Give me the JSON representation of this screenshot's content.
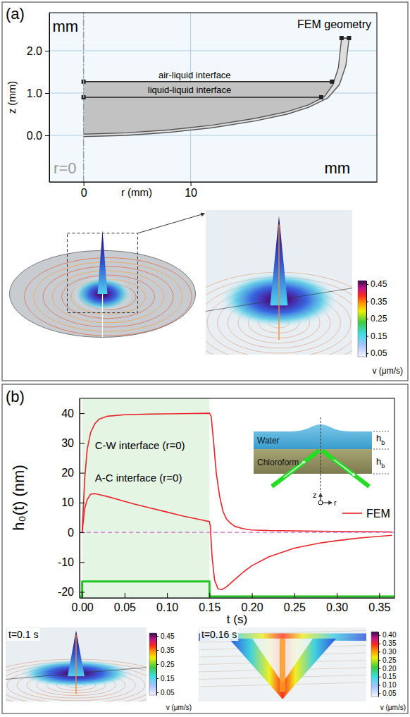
{
  "chart_data": [
    {
      "type": "line",
      "panel": "(a)",
      "title": "FEM geometry",
      "xlabel": "r (mm)",
      "ylabel": "z (mm)",
      "xlim": [
        -3.2,
        27.4
      ],
      "ylim": [
        -1.1,
        2.9
      ],
      "xticks": [
        0,
        10
      ],
      "yticks": [
        {
          "value": 0,
          "label": "0.0"
        },
        {
          "value": 1,
          "label": "1.0"
        },
        {
          "value": 2,
          "label": "2.0"
        }
      ],
      "grid": true,
      "series": [
        {
          "x": [
            0,
            4,
            8,
            12,
            16,
            19,
            21,
            22.5,
            23.3,
            23.8,
            24.1
          ],
          "values": [
            0.03,
            0.06,
            0.13,
            0.24,
            0.4,
            0.56,
            0.72,
            0.92,
            1.2,
            1.6,
            2.3
          ],
          "color": "#555555"
        },
        {
          "x": [
            0,
            4,
            8,
            12,
            16,
            19,
            21,
            22.8,
            23.9,
            24.5,
            24.8
          ],
          "values": [
            -0.03,
            0.0,
            0.07,
            0.18,
            0.34,
            0.5,
            0.66,
            0.88,
            1.2,
            1.65,
            2.3
          ],
          "color": "#555555"
        },
        {
          "x": [
            0,
            23.2
          ],
          "values": [
            1.27,
            1.27
          ],
          "color": "#222222",
          "marker": "square"
        },
        {
          "x": [
            0,
            22.2
          ],
          "values": [
            0.9,
            0.9
          ],
          "color": "#222222",
          "marker": "square"
        },
        {
          "x": [
            0,
            0
          ],
          "values": [
            -1.1,
            2.9
          ],
          "color": "#999999",
          "line_style": "dashdot"
        },
        {
          "x": [
            24.1,
            24.8
          ],
          "values": [
            2.3,
            2.3
          ],
          "color": "#222222",
          "marker": "square"
        }
      ],
      "annotations": [
        {
          "text": "air-liquid interface",
          "x": 7,
          "y": 1.35
        },
        {
          "text": "liquid-liquid interface",
          "x": 6,
          "y": 1.0
        },
        {
          "text": "mm",
          "x": -2.9,
          "y": 2.45
        },
        {
          "text": "mm",
          "x": 22.5,
          "y": -0.9
        },
        {
          "text": "r=0",
          "x": -2.8,
          "y": -0.9,
          "color": "#999999"
        }
      ],
      "colorbar": {
        "label": "v (μm/s)",
        "range": [
          0.03,
          0.47
        ],
        "ticks": [
          0.05,
          0.15,
          0.25,
          0.35,
          0.45
        ]
      }
    },
    {
      "type": "line",
      "panel": "(b)",
      "xlabel": "t (s)",
      "ylabel": "h₀(t) (nm)",
      "xlim": [
        -0.003,
        0.368
      ],
      "ylim": [
        -22,
        45
      ],
      "xticks": [
        {
          "value": 0,
          "label": "0.00"
        },
        0.05,
        {
          "value": 0.1,
          "label": "0.10"
        },
        0.15,
        {
          "value": 0.2,
          "label": "0.20"
        },
        0.25,
        {
          "value": 0.3,
          "label": "0.30"
        },
        0.35
      ],
      "yticks": [
        -20,
        -10,
        0,
        10,
        20,
        30,
        40
      ],
      "legend": "right",
      "legend_label": "FEM",
      "shaded_region": {
        "x": [
          0,
          0.15
        ],
        "color": "#e4f5e4"
      },
      "series": [
        {
          "name": "C-W interface (r=0)",
          "color": "#e8242a",
          "label_at": [
            0.015,
            28
          ],
          "x": [
            0,
            0.003,
            0.006,
            0.01,
            0.015,
            0.02,
            0.03,
            0.05,
            0.08,
            0.1,
            0.13,
            0.15,
            0.152,
            0.155,
            0.158,
            0.162,
            0.166,
            0.17,
            0.175,
            0.18,
            0.19,
            0.2,
            0.22,
            0.25,
            0.3,
            0.35,
            0.365
          ],
          "values": [
            0,
            18,
            28,
            33.5,
            36.5,
            38,
            39,
            39.5,
            39.7,
            39.8,
            39.9,
            40,
            39,
            30,
            20,
            12,
            7,
            4.5,
            3,
            2,
            1.2,
            0.8,
            0.6,
            0.5,
            0.3,
            0.2,
            0.1
          ]
        },
        {
          "name": "A-C interface (r=0)",
          "color": "#e8242a",
          "label_at": [
            0.015,
            17
          ],
          "x": [
            0,
            0.003,
            0.006,
            0.01,
            0.015,
            0.02,
            0.03,
            0.04,
            0.06,
            0.08,
            0.1,
            0.12,
            0.14,
            0.15,
            0.151,
            0.153,
            0.156,
            0.16,
            0.165,
            0.17,
            0.18,
            0.19,
            0.2,
            0.22,
            0.25,
            0.28,
            0.3,
            0.33,
            0.365
          ],
          "values": [
            0,
            8,
            11,
            12.8,
            13,
            12.7,
            12,
            11.2,
            9.6,
            8.2,
            6.8,
            5.4,
            4.2,
            3.6,
            2,
            -8,
            -16,
            -19,
            -19.2,
            -18.3,
            -15.8,
            -13.3,
            -11.2,
            -8.2,
            -5.3,
            -3.6,
            -2.8,
            -1.8,
            -1
          ]
        },
        {
          "color": "#22c422",
          "x": [
            -0.003,
            0,
            0,
            0.15,
            0.15,
            0.368
          ],
          "values": [
            -21.5,
            -21.5,
            -16.5,
            -16.5,
            -21.5,
            -21.5
          ]
        },
        {
          "color": "#cc66cc",
          "line_style": "dashed",
          "x": [
            -0.003,
            0.368
          ],
          "values": [
            0,
            0
          ]
        }
      ],
      "inset": {
        "labels": [
          "Water",
          "Chloroform"
        ],
        "thickness_label": {
          "base": "h",
          "sub": "b"
        },
        "axis_labels": [
          "z",
          "r"
        ]
      },
      "images": [
        {
          "label": "t=0.1 s",
          "colorbar": {
            "label": "v (μm/s)",
            "range": [
              0.03,
              0.47
            ],
            "ticks": [
              0.05,
              0.15,
              0.25,
              0.35,
              0.45
            ]
          }
        },
        {
          "label": "t=0.16 s",
          "colorbar": {
            "label": "v (μm/s)",
            "range": [
              0.03,
              0.42
            ],
            "ticks": [
              0.05,
              {
                "value": 0.1,
                "label": "0.10"
              },
              0.15,
              {
                "value": 0.2,
                "label": "0.20"
              },
              0.25,
              {
                "value": 0.3,
                "label": "0.30"
              },
              0.35,
              {
                "value": 0.4,
                "label": "0.40"
              }
            ]
          }
        }
      ]
    }
  ]
}
